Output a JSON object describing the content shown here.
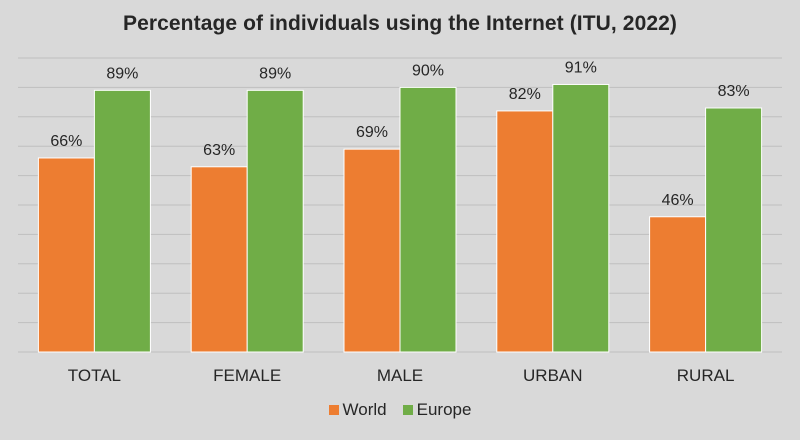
{
  "colors": {
    "background": "#d9d9d9",
    "gridline": "#bfbfbf",
    "text": "#262626"
  },
  "chart_data": {
    "type": "bar",
    "title": "Percentage of individuals using the Internet (ITU, 2022)",
    "categories": [
      "TOTAL",
      "FEMALE",
      "MALE",
      "URBAN",
      "RURAL"
    ],
    "series": [
      {
        "name": "World",
        "color": "#ed7d31",
        "values": [
          66,
          63,
          69,
          82,
          46
        ],
        "labels": [
          "66%",
          "63%",
          "69%",
          "82%",
          "46%"
        ]
      },
      {
        "name": "Europe",
        "color": "#70ad47",
        "values": [
          89,
          89,
          90,
          91,
          83
        ],
        "labels": [
          "89%",
          "89%",
          "90%",
          "91%",
          "83%"
        ]
      }
    ],
    "ylim": [
      0,
      100
    ],
    "grid": true,
    "y_tick_labels_shown": false,
    "legend_position": "bottom"
  }
}
